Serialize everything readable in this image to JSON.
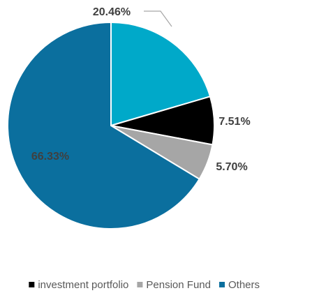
{
  "chart_data": {
    "type": "pie",
    "categories": [
      null,
      "investment portfolio",
      "Pension Fund",
      "Others"
    ],
    "values": [
      20.46,
      7.51,
      5.7,
      66.33
    ],
    "value_labels": [
      "20.46%",
      "7.51%",
      "5.70%",
      "66.33%"
    ],
    "colors": [
      "#00a9c9",
      "#000000",
      "#a6a6a6",
      "#0b6f9e"
    ],
    "legend": "bottom"
  }
}
